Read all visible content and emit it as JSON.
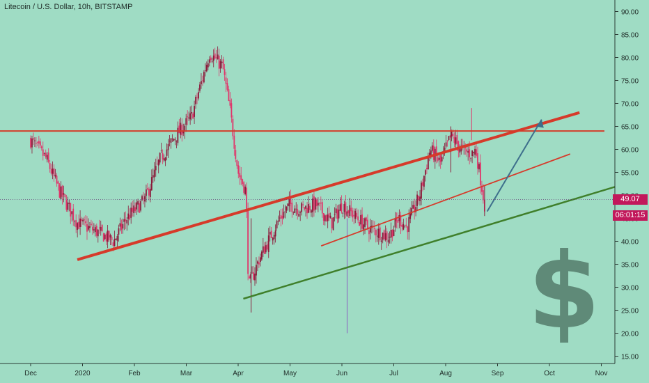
{
  "title": "Litecoin / U.S. Dollar, 10h, BITSTAMP",
  "price_label": "49.07",
  "countdown_label": "06:01:15",
  "dollar_sign": "$",
  "colors": {
    "background": "#9fdcc4",
    "candle_up": "#8b1a3a",
    "candle_down": "#e0356a",
    "trend_red": "#d63a2a",
    "trend_green": "#3f7f2a",
    "resistance": "#d43c2a",
    "arrow": "#3e6f8c",
    "dollar": "#5f8a78"
  },
  "chart_data": {
    "type": "candlestick",
    "title": "Litecoin / U.S. Dollar, 10h, BITSTAMP",
    "ylim": [
      13,
      92
    ],
    "y_ticks": [
      "90.00",
      "85.00",
      "80.00",
      "75.00",
      "70.00",
      "65.00",
      "60.00",
      "55.00",
      "50.00",
      "45.00",
      "40.00",
      "35.00",
      "30.00",
      "25.00",
      "20.00",
      "15.00"
    ],
    "x_ticks": [
      "Dec",
      "2020",
      "Feb",
      "Mar",
      "Apr",
      "May",
      "Jun",
      "Jul",
      "Aug",
      "Sep",
      "Oct",
      "Nov"
    ],
    "last_price": 49.07,
    "close_path": [
      [
        0,
        62
      ],
      [
        0.3,
        58
      ],
      [
        0.55,
        51
      ],
      [
        0.9,
        44
      ],
      [
        1.3,
        42
      ],
      [
        1.6,
        40
      ],
      [
        1.85,
        45
      ],
      [
        2.2,
        49
      ],
      [
        2.5,
        58
      ],
      [
        2.8,
        63
      ],
      [
        3.1,
        67
      ],
      [
        3.45,
        81
      ],
      [
        3.7,
        78
      ],
      [
        3.85,
        68
      ],
      [
        4.0,
        55
      ],
      [
        4.15,
        51
      ],
      [
        4.2,
        30
      ],
      [
        4.4,
        36
      ],
      [
        4.8,
        45
      ],
      [
        5.0,
        48
      ],
      [
        5.2,
        47
      ],
      [
        5.5,
        48
      ],
      [
        5.8,
        44
      ],
      [
        6.0,
        48
      ],
      [
        6.3,
        45
      ],
      [
        6.5,
        43
      ],
      [
        6.9,
        41
      ],
      [
        7.1,
        45
      ],
      [
        7.25,
        43
      ],
      [
        7.5,
        50
      ],
      [
        7.7,
        60
      ],
      [
        7.9,
        57
      ],
      [
        8.1,
        63
      ],
      [
        8.3,
        60
      ],
      [
        8.5,
        59
      ],
      [
        8.58,
        60
      ],
      [
        8.75,
        48
      ]
    ],
    "annotations": {
      "resistance_level": 64,
      "upper_channel": [
        [
          0.9,
          36
        ],
        [
          10.58,
          68
        ]
      ],
      "inner_channel": [
        [
          5.6,
          39
        ],
        [
          10.4,
          59
        ]
      ],
      "support_line": [
        [
          4.1,
          27.5
        ],
        [
          11.75,
          53.5
        ]
      ],
      "projection_arrow": [
        [
          8.8,
          46.5
        ],
        [
          9.85,
          66.5
        ]
      ]
    }
  }
}
